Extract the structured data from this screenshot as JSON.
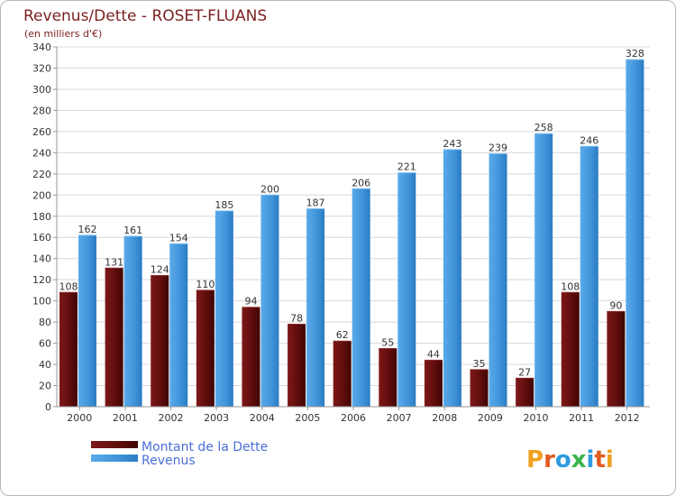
{
  "chart_data": {
    "type": "bar",
    "title": "Revenus/Dette - ROSET-FLUANS",
    "subtitle": "(en milliers d'€)",
    "categories": [
      "2000",
      "2001",
      "2002",
      "2003",
      "2004",
      "2005",
      "2006",
      "2007",
      "2008",
      "2009",
      "2010",
      "2011",
      "2012"
    ],
    "series": [
      {
        "name": "Montant de la Dette",
        "color": "#6b0f0f",
        "values": [
          108,
          131,
          124,
          110,
          94,
          78,
          62,
          55,
          44,
          35,
          27,
          108,
          90
        ]
      },
      {
        "name": "Revenus",
        "color": "#4d9fe0",
        "values": [
          162,
          161,
          154,
          185,
          200,
          187,
          206,
          221,
          243,
          239,
          258,
          246,
          328
        ]
      }
    ],
    "ylim": [
      0,
      340
    ],
    "ytick_step": 20,
    "grid": true,
    "legend_position": "bottom-left"
  },
  "logo": {
    "text": "Proxiti",
    "letter_colors": [
      "#f0a020",
      "#e05a20",
      "#2e9be0",
      "#3ab54a",
      "#2e9be0",
      "#e05a20",
      "#f0a020"
    ]
  }
}
